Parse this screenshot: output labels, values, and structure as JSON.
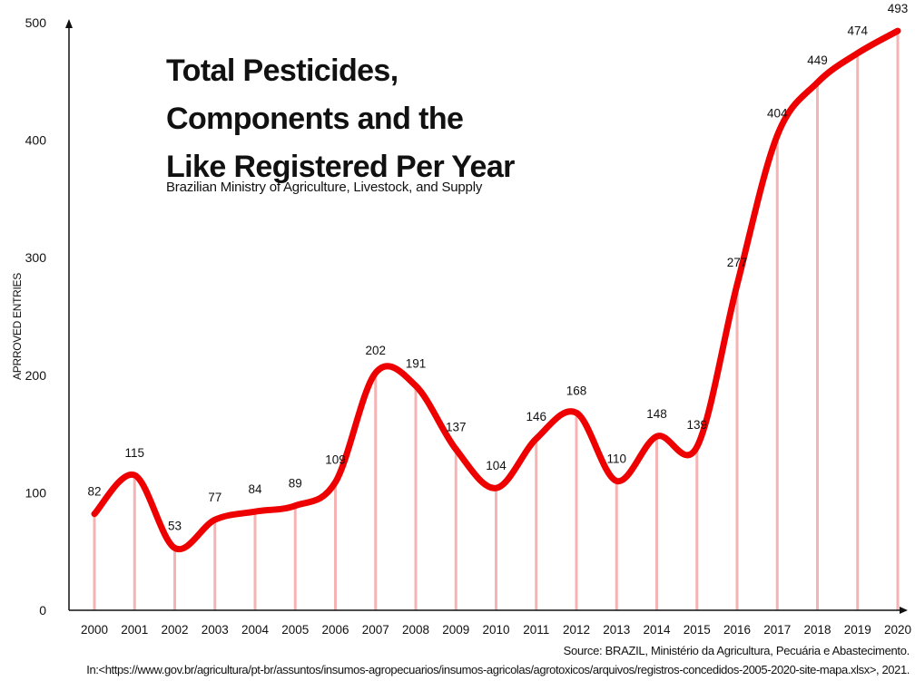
{
  "chart_data": {
    "type": "line",
    "title_lines": [
      "Total Pesticides,",
      "Components and the",
      "Like Registered Per Year"
    ],
    "subtitle": "Brazilian Ministry of Agriculture, Livestock, and Supply",
    "ylabel": "APRROVED ENTRIES",
    "xlabel": "",
    "categories": [
      "2000",
      "2001",
      "2002",
      "2003",
      "2004",
      "2005",
      "2006",
      "2007",
      "2008",
      "2009",
      "2010",
      "2011",
      "2012",
      "2013",
      "2014",
      "2015",
      "2016",
      "2017",
      "2018",
      "2019",
      "2020"
    ],
    "values": [
      82,
      115,
      53,
      77,
      84,
      89,
      109,
      202,
      191,
      137,
      104,
      146,
      168,
      110,
      148,
      139,
      277,
      404,
      449,
      474,
      493
    ],
    "value_labels": [
      "82",
      "115",
      "53",
      "77",
      "84",
      "89",
      "109",
      "202",
      "191",
      "137",
      "104",
      "146",
      "168",
      "110",
      "148",
      "139",
      "277",
      "404",
      "449",
      "474",
      "493"
    ],
    "ylim": [
      0,
      500
    ],
    "yticks": [
      0,
      100,
      200,
      300,
      400,
      500
    ],
    "ytick_labels": [
      "0",
      "100",
      "200",
      "300",
      "400",
      "500"
    ],
    "grid": false,
    "colors": {
      "line": "#ee0000",
      "stems": "#f5b3b3",
      "axis": "#111111"
    },
    "source_lines": [
      "Source: BRAZIL, Ministério da Agricultura, Pecuária e Abastecimento.",
      "In:<https://www.gov.br/agricultura/pt-br/assuntos/insumos-agropecuarios/insumos-agricolas/agrotoxicos/arquivos/registros-concedidos-2005-2020-site-mapa.xlsx>, 2021."
    ]
  }
}
